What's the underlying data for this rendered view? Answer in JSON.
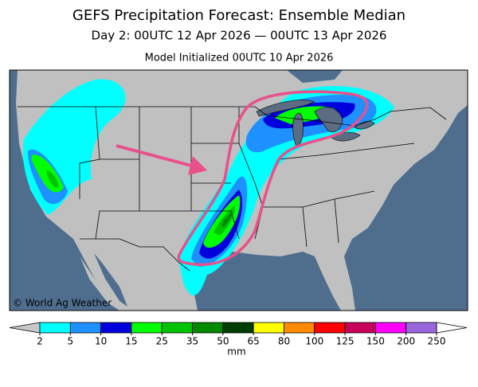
{
  "header": {
    "title": "GEFS Precipitation Forecast: Ensemble Median",
    "subtitle": "Day 2: 00UTC 12 Apr 2026 — 00UTC 13 Apr 2026",
    "initialized": "Model Initialized 00UTC 10 Apr 2026"
  },
  "map": {
    "credit": "© World Ag Weather"
  },
  "legend": {
    "ticks": [
      2,
      5,
      10,
      15,
      25,
      35,
      50,
      65,
      80,
      100,
      125,
      150,
      200,
      250
    ],
    "colors": [
      "#00ffff",
      "#1e90ff",
      "#0000dd",
      "#00ff00",
      "#00c400",
      "#008a00",
      "#003c00",
      "#ffff00",
      "#ff8c00",
      "#ff0000",
      "#c8005a",
      "#ff00ff",
      "#9966dd"
    ],
    "under_color": "#c8c8c8",
    "over_color": "#ffffff",
    "unit": "mm"
  }
}
